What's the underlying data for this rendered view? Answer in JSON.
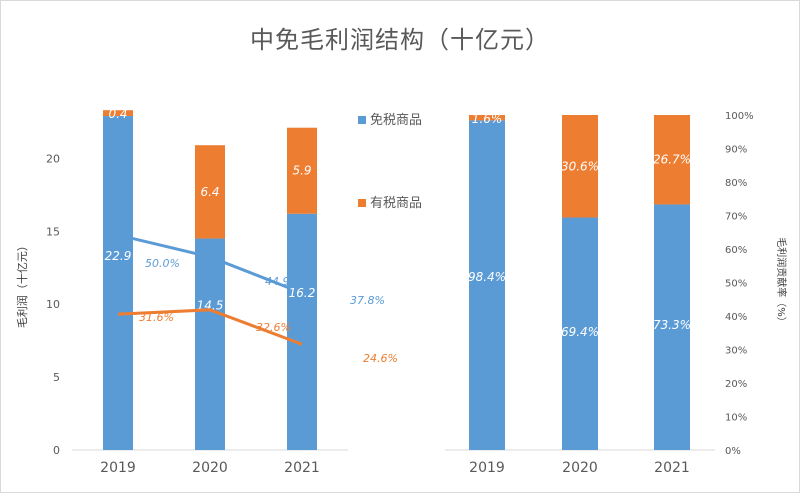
{
  "title": "中免毛利润结构（十亿元）",
  "colors": {
    "duty_free": "#5B9BD5",
    "duty_paid": "#ED7D31",
    "axis_text": "#595959",
    "grid": "#d9d9d9"
  },
  "chart_data": [
    {
      "type": "bar",
      "stacked": true,
      "categories": [
        "2019",
        "2020",
        "2021"
      ],
      "series": [
        {
          "name": "免税商品",
          "values": [
            22.9,
            14.5,
            16.2
          ],
          "labels": [
            "22.9",
            "14.5",
            "16.2"
          ]
        },
        {
          "name": "有税商品",
          "values": [
            0.4,
            6.4,
            5.9
          ],
          "labels": [
            "0.4",
            "6.4",
            "5.9"
          ]
        }
      ],
      "ylabel": "毛利润（十亿元）",
      "yticks": [
        "0",
        "5",
        "10",
        "15",
        "20"
      ],
      "ylim": [
        0,
        24
      ],
      "legend": "right",
      "overlay_lines": [
        {
          "series": "免税商品",
          "values": [
            50.0,
            44.9,
            37.8
          ],
          "labels": [
            "50.0%",
            "44.9%",
            "37.8%"
          ]
        },
        {
          "series": "有税商品",
          "values": [
            31.6,
            32.6,
            24.6
          ],
          "labels": [
            "31.6%",
            "32.6%",
            "24.6%"
          ]
        }
      ]
    },
    {
      "type": "bar",
      "stacked": true,
      "percent": true,
      "categories": [
        "2019",
        "2020",
        "2021"
      ],
      "series": [
        {
          "name": "免税商品",
          "values": [
            98.4,
            69.4,
            73.3
          ],
          "labels": [
            "98.4%",
            "69.4%",
            "73.3%"
          ]
        },
        {
          "name": "有税商品",
          "values": [
            1.6,
            30.6,
            26.7
          ],
          "labels": [
            "1.6%",
            "30.6%",
            "26.7%"
          ]
        }
      ],
      "ylabel": "毛利润贡献率（%）",
      "yticks": [
        "0%",
        "10%",
        "20%",
        "30%",
        "40%",
        "50%",
        "60%",
        "70%",
        "80%",
        "90%",
        "100%"
      ],
      "ylim": [
        0,
        100
      ]
    }
  ]
}
